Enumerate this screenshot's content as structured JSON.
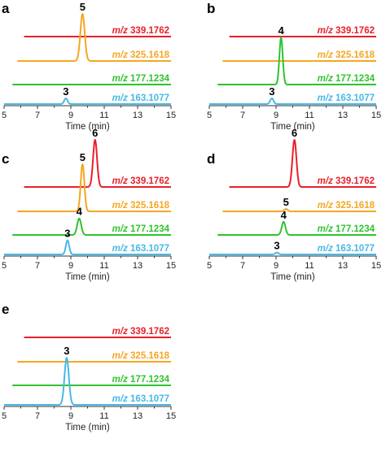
{
  "chart_data": [
    {
      "type": "line",
      "panel": "a",
      "xlabel": "Time (min)",
      "xlim": [
        5,
        15
      ],
      "xticks": [
        5,
        7,
        9,
        11,
        13,
        15
      ],
      "grid": false,
      "series": [
        {
          "name": "m/z 339.1762",
          "color": "#e8202a",
          "start": 6.2,
          "x": [
            6.2,
            15
          ],
          "y": [
            0,
            0
          ],
          "peaks": []
        },
        {
          "name": "m/z 325.1618",
          "color": "#f5a623",
          "start": 5.8,
          "x": [
            5.8,
            9.3,
            9.7,
            10.0,
            15
          ],
          "y": [
            0,
            0,
            1.0,
            0,
            0
          ],
          "peaks": [
            {
              "label": "5",
              "x": 9.7,
              "height": 1.0,
              "width": 0.13
            }
          ]
        },
        {
          "name": "m/z 177.1234",
          "color": "#2fc32f",
          "start": 5.5,
          "x": [
            5.5,
            15
          ],
          "y": [
            0,
            0
          ],
          "peaks": []
        },
        {
          "name": "m/z 163.1077",
          "color": "#48b8e6",
          "start": 5.0,
          "x": [
            5.0,
            8.4,
            8.7,
            9.0,
            15
          ],
          "y": [
            0,
            0,
            0.12,
            0,
            0
          ],
          "peaks": [
            {
              "label": "3",
              "x": 8.7,
              "height": 0.12,
              "width": 0.1
            }
          ]
        }
      ]
    },
    {
      "type": "line",
      "panel": "b",
      "xlabel": "Time (min)",
      "xlim": [
        5,
        15
      ],
      "xticks": [
        5,
        7,
        9,
        11,
        13,
        15
      ],
      "grid": false,
      "series": [
        {
          "name": "m/z 339.1762",
          "color": "#e8202a",
          "start": 6.2,
          "x": [
            6.2,
            15
          ],
          "y": [
            0,
            0
          ],
          "peaks": []
        },
        {
          "name": "m/z 325.1618",
          "color": "#f5a623",
          "start": 5.8,
          "x": [
            5.8,
            15
          ],
          "y": [
            0,
            0
          ],
          "peaks": []
        },
        {
          "name": "m/z 177.1234",
          "color": "#2fc32f",
          "start": 5.5,
          "x": [
            5.5,
            9.0,
            9.3,
            9.6,
            15
          ],
          "y": [
            0,
            0,
            1.0,
            0,
            0
          ],
          "peaks": [
            {
              "label": "4",
              "x": 9.3,
              "height": 1.0,
              "width": 0.1
            }
          ]
        },
        {
          "name": "m/z 163.1077",
          "color": "#48b8e6",
          "start": 5.0,
          "x": [
            5.0,
            8.5,
            8.75,
            9.0,
            15
          ],
          "y": [
            0,
            0,
            0.12,
            0,
            0
          ],
          "peaks": [
            {
              "label": "3",
              "x": 8.75,
              "height": 0.12,
              "width": 0.1
            }
          ]
        }
      ]
    },
    {
      "type": "line",
      "panel": "c",
      "xlabel": "Time (min)",
      "xlim": [
        5,
        15
      ],
      "xticks": [
        5,
        7,
        9,
        11,
        13,
        15
      ],
      "grid": false,
      "series": [
        {
          "name": "m/z 339.1762",
          "color": "#e8202a",
          "start": 6.2,
          "x": [
            6.2,
            10.1,
            10.45,
            10.8,
            15
          ],
          "y": [
            0,
            0,
            1.0,
            0,
            0
          ],
          "peaks": [
            {
              "label": "6",
              "x": 10.45,
              "height": 1.0,
              "width": 0.12
            }
          ]
        },
        {
          "name": "m/z 325.1618",
          "color": "#f5a623",
          "start": 5.8,
          "x": [
            5.8,
            9.4,
            9.7,
            10.0,
            15
          ],
          "y": [
            0,
            0,
            1.0,
            0,
            0
          ],
          "peaks": [
            {
              "label": "5",
              "x": 9.7,
              "height": 1.0,
              "width": 0.11
            }
          ]
        },
        {
          "name": "m/z 177.1234",
          "color": "#2fc32f",
          "start": 5.5,
          "x": [
            5.5,
            9.2,
            9.5,
            9.8,
            15
          ],
          "y": [
            0,
            0,
            0.35,
            0,
            0
          ],
          "peaks": [
            {
              "label": "4",
              "x": 9.5,
              "height": 0.35,
              "width": 0.12
            }
          ]
        },
        {
          "name": "m/z 163.1077",
          "color": "#48b8e6",
          "start": 5.0,
          "x": [
            5.0,
            8.5,
            8.8,
            9.1,
            15
          ],
          "y": [
            0,
            0,
            0.3,
            0,
            0
          ],
          "peaks": [
            {
              "label": "3",
              "x": 8.8,
              "height": 0.3,
              "width": 0.1
            }
          ]
        }
      ]
    },
    {
      "type": "line",
      "panel": "d",
      "xlabel": "Time (min)",
      "xlim": [
        5,
        15
      ],
      "xticks": [
        5,
        7,
        9,
        11,
        13,
        15
      ],
      "grid": false,
      "series": [
        {
          "name": "m/z 339.1762",
          "color": "#e8202a",
          "start": 6.2,
          "x": [
            6.2,
            9.8,
            10.1,
            10.4,
            15
          ],
          "y": [
            0,
            0,
            1.0,
            0,
            0
          ],
          "peaks": [
            {
              "label": "6",
              "x": 10.1,
              "height": 1.0,
              "width": 0.12
            }
          ]
        },
        {
          "name": "m/z 325.1618",
          "color": "#f5a623",
          "start": 5.8,
          "x": [
            5.8,
            9.35,
            9.6,
            9.85,
            15
          ],
          "y": [
            0,
            0,
            0.05,
            0,
            0
          ],
          "peaks": [
            {
              "label": "5",
              "x": 9.6,
              "height": 0.05,
              "width": 0.1
            }
          ]
        },
        {
          "name": "m/z 177.1234",
          "color": "#2fc32f",
          "start": 5.5,
          "x": [
            5.5,
            9.2,
            9.45,
            9.7,
            15
          ],
          "y": [
            0,
            0,
            0.28,
            0,
            0
          ],
          "peaks": [
            {
              "label": "4",
              "x": 9.45,
              "height": 0.28,
              "width": 0.11
            }
          ]
        },
        {
          "name": "m/z 163.1077",
          "color": "#48b8e6",
          "start": 5.0,
          "x": [
            5.0,
            8.8,
            9.05,
            9.3,
            15
          ],
          "y": [
            0,
            0,
            0.04,
            0,
            0
          ],
          "peaks": [
            {
              "label": "3",
              "x": 9.05,
              "height": 0.04,
              "width": 0.1
            }
          ]
        }
      ]
    },
    {
      "type": "line",
      "panel": "e",
      "xlabel": "Time (min)",
      "xlim": [
        5,
        15
      ],
      "xticks": [
        5,
        7,
        9,
        11,
        13,
        15
      ],
      "grid": false,
      "series": [
        {
          "name": "m/z 339.1762",
          "color": "#e8202a",
          "start": 6.2,
          "x": [
            6.2,
            15
          ],
          "y": [
            0,
            0
          ],
          "peaks": []
        },
        {
          "name": "m/z 325.1618",
          "color": "#f5a623",
          "start": 5.8,
          "x": [
            5.8,
            15
          ],
          "y": [
            0,
            0
          ],
          "peaks": []
        },
        {
          "name": "m/z 177.1234",
          "color": "#2fc32f",
          "start": 5.5,
          "x": [
            5.5,
            15
          ],
          "y": [
            0,
            0
          ],
          "peaks": []
        },
        {
          "name": "m/z 163.1077",
          "color": "#48b8e6",
          "start": 5.0,
          "x": [
            5.0,
            8.45,
            8.75,
            9.1,
            15
          ],
          "y": [
            0,
            0,
            1.0,
            0,
            0
          ],
          "peaks": [
            {
              "label": "3",
              "x": 8.75,
              "height": 1.0,
              "width": 0.13
            }
          ]
        }
      ]
    }
  ]
}
